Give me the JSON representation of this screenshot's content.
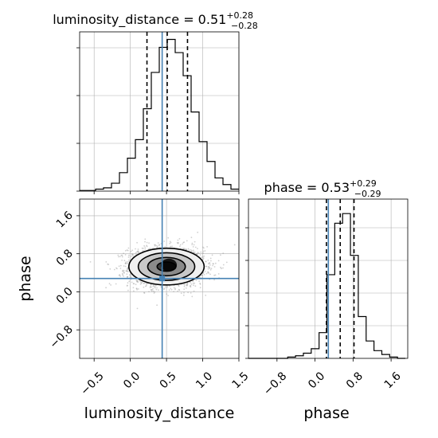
{
  "chart_data": {
    "type": "corner",
    "params": [
      {
        "name": "luminosity_distance",
        "title_lhs": "luminosity_distance = 0.51",
        "title_plus": "+0.28",
        "title_minus": "−0.28",
        "median": 0.51,
        "q_low": 0.23,
        "q_high": 0.79,
        "truth": 0.44,
        "range": [
          -0.7,
          1.5
        ],
        "ticks": [
          -0.5,
          0.0,
          0.5,
          1.0,
          1.5
        ],
        "tick_labels": [
          "−0.5",
          "0.0",
          "0.5",
          "1.0",
          "1.5"
        ],
        "hist_bin_edges": [
          -0.7,
          -0.59,
          -0.48,
          -0.37,
          -0.26,
          -0.15,
          -0.04,
          0.07,
          0.18,
          0.29,
          0.4,
          0.51,
          0.62,
          0.73,
          0.84,
          0.95,
          1.06,
          1.17,
          1.28,
          1.39,
          1.5
        ],
        "hist_counts": [
          1,
          1,
          3,
          5,
          12,
          28,
          50,
          78,
          125,
          180,
          218,
          230,
          210,
          175,
          120,
          75,
          45,
          20,
          10,
          3
        ]
      },
      {
        "name": "phase",
        "title_lhs": "phase = 0.53",
        "title_plus": "+0.29",
        "title_minus": "−0.29",
        "median": 0.53,
        "q_low": 0.24,
        "q_high": 0.82,
        "truth": 0.28,
        "range": [
          -1.4,
          1.95
        ],
        "ticks": [
          -0.8,
          0.0,
          0.8,
          1.6
        ],
        "tick_labels": [
          "−0.8",
          "0.0",
          "0.8",
          "1.6"
        ],
        "hist_bin_edges": [
          -1.4,
          -1.235,
          -1.07,
          -0.905,
          -0.74,
          -0.575,
          -0.41,
          -0.245,
          -0.08,
          0.085,
          0.25,
          0.415,
          0.58,
          0.745,
          0.91,
          1.075,
          1.24,
          1.405,
          1.57,
          1.735,
          1.9
        ],
        "hist_counts": [
          0,
          0,
          0,
          0,
          0,
          2,
          4,
          8,
          15,
          40,
          130,
          210,
          225,
          160,
          65,
          27,
          12,
          6,
          2,
          0
        ]
      }
    ],
    "joint": {
      "x_param": "luminosity_distance",
      "y_param": "phase",
      "mean": [
        0.5,
        0.53
      ],
      "std": [
        0.26,
        0.21
      ],
      "truth": [
        0.44,
        0.28
      ],
      "contour_levels_sigma": [
        0.5,
        1.0,
        1.5,
        2.0
      ],
      "n_samples": 2500
    },
    "xlabel_left": "luminosity_distance",
    "xlabel_right": "phase",
    "ylabel_bottom": "phase",
    "colors": {
      "truth": "#4682b4",
      "grid": "#b0b0b0",
      "hist": "#000000",
      "quantile": "#000000"
    }
  }
}
